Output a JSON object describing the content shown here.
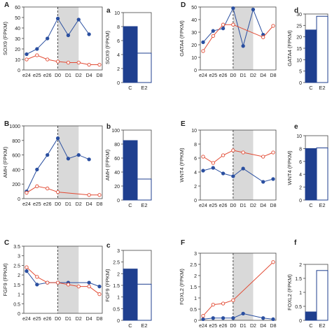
{
  "chart_data": [
    {
      "id": "A",
      "type": "line",
      "panel_label": "A",
      "ylabel": "SOX9 (FPKM)",
      "x": [
        "e24",
        "e25",
        "e26",
        "D0",
        "D1",
        "D2",
        "D4",
        "D8"
      ],
      "ylim": [
        0,
        60
      ],
      "yticks": [
        0,
        10,
        20,
        30,
        40,
        50,
        60
      ],
      "series": [
        {
          "color": "#2a4fa0",
          "values": [
            15,
            20,
            30,
            49,
            33,
            48,
            34,
            null
          ],
          "filled": true
        },
        {
          "color": "#e24a33",
          "values": [
            10,
            14,
            10,
            8,
            7,
            7,
            5,
            5
          ],
          "filled": false
        }
      ]
    },
    {
      "id": "a",
      "type": "bar",
      "panel_label": "a",
      "ylabel": "SOX9 (FPKM)",
      "categories": [
        "C",
        "E2"
      ],
      "values": [
        8,
        4.2
      ],
      "ylim": [
        0,
        10
      ],
      "yticks": [
        0,
        2,
        4,
        6,
        8,
        10
      ]
    },
    {
      "id": "D",
      "type": "line",
      "panel_label": "D",
      "ylabel": "GATA4 (FPKM)",
      "x": [
        "e24",
        "e25",
        "e26",
        "D0",
        "D1",
        "D2",
        "D4",
        "D8"
      ],
      "ylim": [
        0,
        50
      ],
      "yticks": [
        0,
        10,
        20,
        30,
        40,
        50
      ],
      "series": [
        {
          "color": "#2a4fa0",
          "values": [
            22,
            31,
            33,
            49,
            19,
            48,
            28,
            null
          ],
          "filled": true
        },
        {
          "color": "#e24a33",
          "values": [
            15,
            27,
            36,
            36,
            null,
            null,
            26,
            35
          ],
          "filled": false
        }
      ]
    },
    {
      "id": "d",
      "type": "bar",
      "panel_label": "d",
      "ylabel": "GATA4 (FPKM)",
      "categories": [
        "C",
        "E2"
      ],
      "values": [
        23,
        29
      ],
      "ylim": [
        0,
        30
      ],
      "yticks": [
        0,
        5,
        10,
        15,
        20,
        25,
        30
      ]
    },
    {
      "id": "B",
      "type": "line",
      "panel_label": "B",
      "ylabel": "AMH (FPKM)",
      "x": [
        "e24",
        "e25",
        "e26",
        "D0",
        "D1",
        "D2",
        "D4",
        "D8"
      ],
      "ylim": [
        0,
        1000
      ],
      "yticks": [
        0,
        200,
        400,
        600,
        800,
        1000
      ],
      "series": [
        {
          "color": "#2a4fa0",
          "values": [
            100,
            400,
            600,
            830,
            550,
            600,
            540,
            null
          ],
          "filled": true
        },
        {
          "color": "#e24a33",
          "values": [
            80,
            170,
            140,
            90,
            null,
            null,
            50,
            50
          ],
          "filled": false
        }
      ]
    },
    {
      "id": "b",
      "type": "bar",
      "panel_label": "b",
      "ylabel": "AMH (FPKM)",
      "categories": [
        "C",
        "E2"
      ],
      "values": [
        85,
        30
      ],
      "ylim": [
        0,
        100
      ],
      "yticks": [
        0,
        20,
        40,
        60,
        80,
        100
      ]
    },
    {
      "id": "E",
      "type": "line",
      "panel_label": "E",
      "ylabel": "WNT4 (FPKM)",
      "x": [
        "e24",
        "e25",
        "e26",
        "D0",
        "D1",
        "D2",
        "D4",
        "D8"
      ],
      "ylim": [
        0,
        10
      ],
      "yticks": [
        0,
        2,
        4,
        6,
        8,
        10
      ],
      "series": [
        {
          "color": "#2a4fa0",
          "values": [
            4.2,
            4.6,
            3.8,
            3.4,
            4.5,
            null,
            2.6,
            3.0
          ],
          "filled": true
        },
        {
          "color": "#e24a33",
          "values": [
            6.2,
            5.3,
            6.4,
            7.1,
            6.8,
            null,
            6.2,
            6.8
          ],
          "filled": false
        }
      ]
    },
    {
      "id": "e",
      "type": "bar",
      "panel_label": "e",
      "ylabel": "WNT4 (FPKM)",
      "categories": [
        "C",
        "E2"
      ],
      "values": [
        8,
        8.1
      ],
      "ylim": [
        0,
        10
      ],
      "yticks": [
        0,
        2,
        4,
        6,
        8,
        10
      ]
    },
    {
      "id": "C",
      "type": "line",
      "panel_label": "C",
      "ylabel": "FGF9 (FPKM)",
      "x": [
        "e24",
        "e25",
        "e26",
        "D0",
        "D1",
        "D2",
        "D4",
        "D8"
      ],
      "ylim": [
        0,
        3.5
      ],
      "yticks": [
        0,
        0.5,
        1,
        1.5,
        2,
        2.5,
        3,
        3.5
      ],
      "series": [
        {
          "color": "#2a4fa0",
          "values": [
            2.2,
            1.5,
            1.6,
            1.6,
            1.6,
            null,
            1.6,
            1.4
          ],
          "filled": true
        },
        {
          "color": "#e24a33",
          "values": [
            2.4,
            1.9,
            1.6,
            1.6,
            1.5,
            1.4,
            1.4,
            1.0
          ],
          "filled": false
        }
      ]
    },
    {
      "id": "c",
      "type": "bar",
      "panel_label": "c",
      "ylabel": "FGF9 (FPKM)",
      "categories": [
        "C",
        "E2"
      ],
      "values": [
        2.2,
        1.55
      ],
      "ylim": [
        0,
        3
      ],
      "yticks": [
        0,
        0.5,
        1,
        1.5,
        2,
        2.5,
        3
      ]
    },
    {
      "id": "F",
      "type": "line",
      "panel_label": "F",
      "ylabel": "FOXL2 (FPKM)",
      "x": [
        "e24",
        "e25",
        "e26",
        "D0",
        "D1",
        "D2",
        "D4",
        "D8"
      ],
      "ylim": [
        0,
        3
      ],
      "yticks": [
        0,
        0.5,
        1,
        1.5,
        2,
        2.5,
        3
      ],
      "series": [
        {
          "color": "#2a4fa0",
          "values": [
            0.05,
            0.1,
            0.1,
            0.1,
            0.3,
            null,
            0.1,
            0.05
          ],
          "filled": true
        },
        {
          "color": "#e24a33",
          "values": [
            0.2,
            0.7,
            0.75,
            0.9,
            null,
            null,
            null,
            2.6
          ],
          "filled": false
        }
      ]
    },
    {
      "id": "f",
      "type": "bar",
      "panel_label": "f",
      "ylabel": "FOXL2 (FPKM)",
      "categories": [
        "C",
        "E2"
      ],
      "values": [
        0.3,
        1.78
      ],
      "ylim": [
        0,
        2
      ],
      "yticks": [
        0,
        0.5,
        1,
        1.5,
        2
      ]
    }
  ]
}
